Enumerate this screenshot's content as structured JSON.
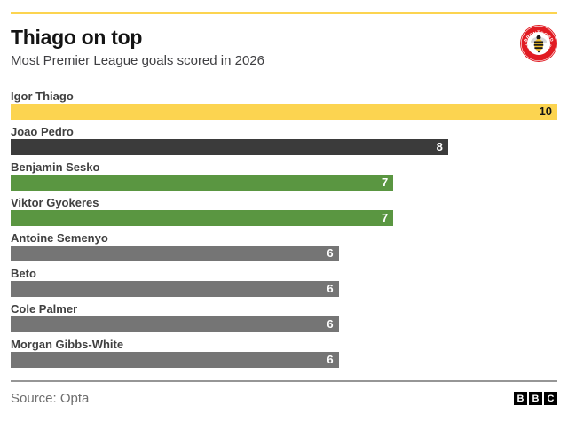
{
  "header": {
    "title": "Thiago on top",
    "subtitle": "Most Premier League goals scored in 2026"
  },
  "badge": {
    "club": "Brentford",
    "top_text": "BRENTFORD",
    "bottom_text": "FOOTBALL CLUB",
    "icon": "bee-icon",
    "ring_color": "#E11B22",
    "center_color": "#ffffff"
  },
  "chart_data": {
    "type": "bar",
    "orientation": "horizontal",
    "title": "Thiago on top",
    "subtitle": "Most Premier League goals scored in 2026",
    "categories": [
      "Igor Thiago",
      "Joao Pedro",
      "Benjamin Sesko",
      "Viktor Gyokeres",
      "Antoine Semenyo",
      "Beto",
      "Cole Palmer",
      "Morgan Gibbs-White"
    ],
    "values": [
      10,
      8,
      7,
      7,
      6,
      6,
      6,
      6
    ],
    "xlim": [
      0,
      10
    ],
    "grid": false,
    "legend": false,
    "value_labels": "inside-end",
    "bar_colors": [
      "#FCD450",
      "#3B3B3B",
      "#5A9641",
      "#5A9641",
      "#757575",
      "#757575",
      "#757575",
      "#757575"
    ],
    "value_label_colors": [
      "#141414",
      "#ffffff",
      "#ffffff",
      "#ffffff",
      "#ffffff",
      "#ffffff",
      "#ffffff",
      "#ffffff"
    ]
  },
  "footer": {
    "source_label": "Source: Opta",
    "logo_letters": [
      "B",
      "B",
      "C"
    ]
  },
  "colors": {
    "accent_yellow": "#FCD450",
    "dark_bar": "#3B3B3B",
    "green_bar": "#5A9641",
    "gray_bar": "#757575",
    "divider": "#969696",
    "title_text": "#141414",
    "label_text": "#404040",
    "source_text": "#6e6e6e"
  }
}
